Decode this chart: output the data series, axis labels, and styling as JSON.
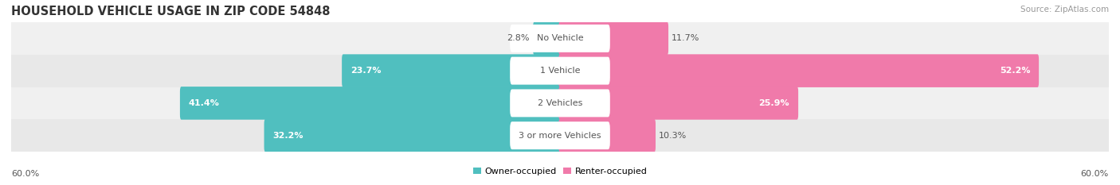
{
  "title": "HOUSEHOLD VEHICLE USAGE IN ZIP CODE 54848",
  "source": "Source: ZipAtlas.com",
  "categories": [
    "No Vehicle",
    "1 Vehicle",
    "2 Vehicles",
    "3 or more Vehicles"
  ],
  "owner_values": [
    2.8,
    23.7,
    41.4,
    32.2
  ],
  "renter_values": [
    11.7,
    52.2,
    25.9,
    10.3
  ],
  "owner_color": "#50bfbf",
  "renter_color": "#f07aaa",
  "row_bg_colors": [
    "#f0f0f0",
    "#e8e8e8",
    "#f0f0f0",
    "#e8e8e8"
  ],
  "max_value": 60.0,
  "x_axis_label_left": "60.0%",
  "x_axis_label_right": "60.0%",
  "legend_owner": "Owner-occupied",
  "legend_renter": "Renter-occupied",
  "title_fontsize": 10.5,
  "label_fontsize": 8.0,
  "category_fontsize": 8.0,
  "axis_fontsize": 8.0,
  "owner_label_white_threshold": 8.0,
  "renter_label_white_threshold": 20.0
}
